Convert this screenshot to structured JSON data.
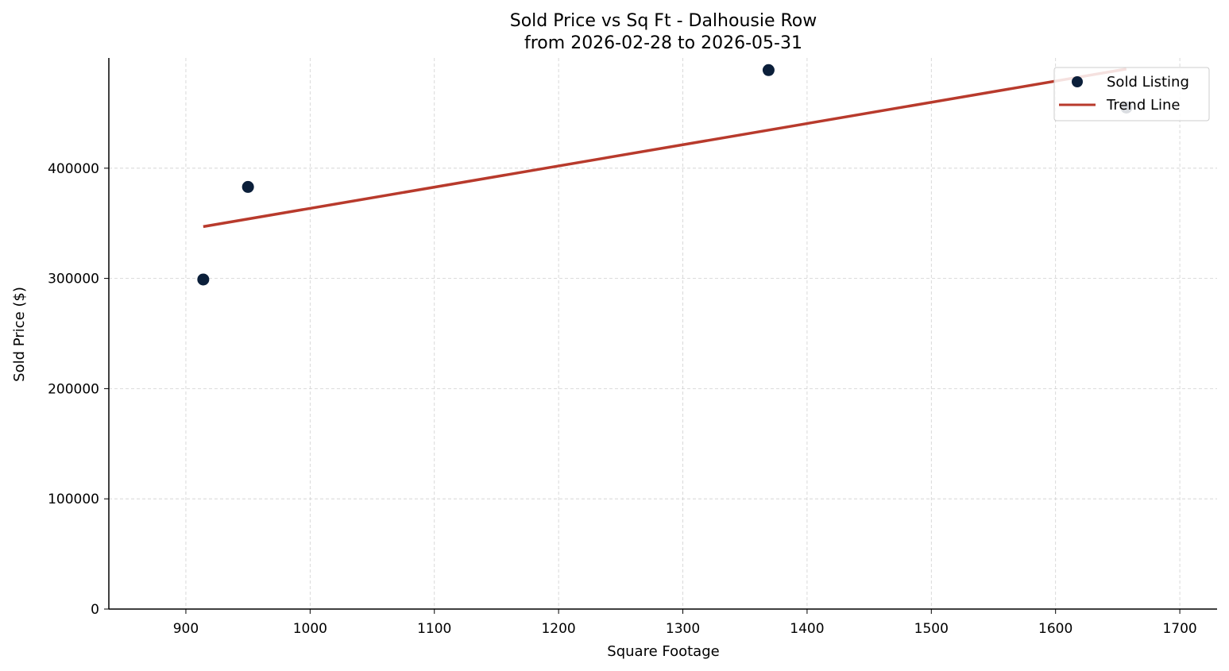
{
  "chart_data": {
    "type": "scatter",
    "title": "Sold Price vs Sq Ft - Dalhousie Row",
    "subtitle": "from 2026-02-28 to 2026-05-31",
    "xlabel": "Square Footage",
    "ylabel": "Sold Price ($)",
    "xlim": [
      838,
      1730
    ],
    "ylim": [
      0,
      500000
    ],
    "xticks": [
      900,
      1000,
      1100,
      1200,
      1300,
      1400,
      1500,
      1600,
      1700
    ],
    "yticks": [
      0,
      100000,
      200000,
      300000,
      400000
    ],
    "grid": true,
    "legend_position": "top-right",
    "series": [
      {
        "name": "Sold Listing",
        "kind": "scatter",
        "color": "#0b1f3a",
        "points": [
          {
            "x": 914,
            "y": 299000
          },
          {
            "x": 950,
            "y": 383000
          },
          {
            "x": 1369,
            "y": 489000
          },
          {
            "x": 1657,
            "y": 455000
          }
        ]
      },
      {
        "name": "Trend Line",
        "kind": "line",
        "color": "#b83a2c",
        "points": [
          {
            "x": 914,
            "y": 347000
          },
          {
            "x": 1657,
            "y": 490000
          }
        ]
      }
    ]
  }
}
